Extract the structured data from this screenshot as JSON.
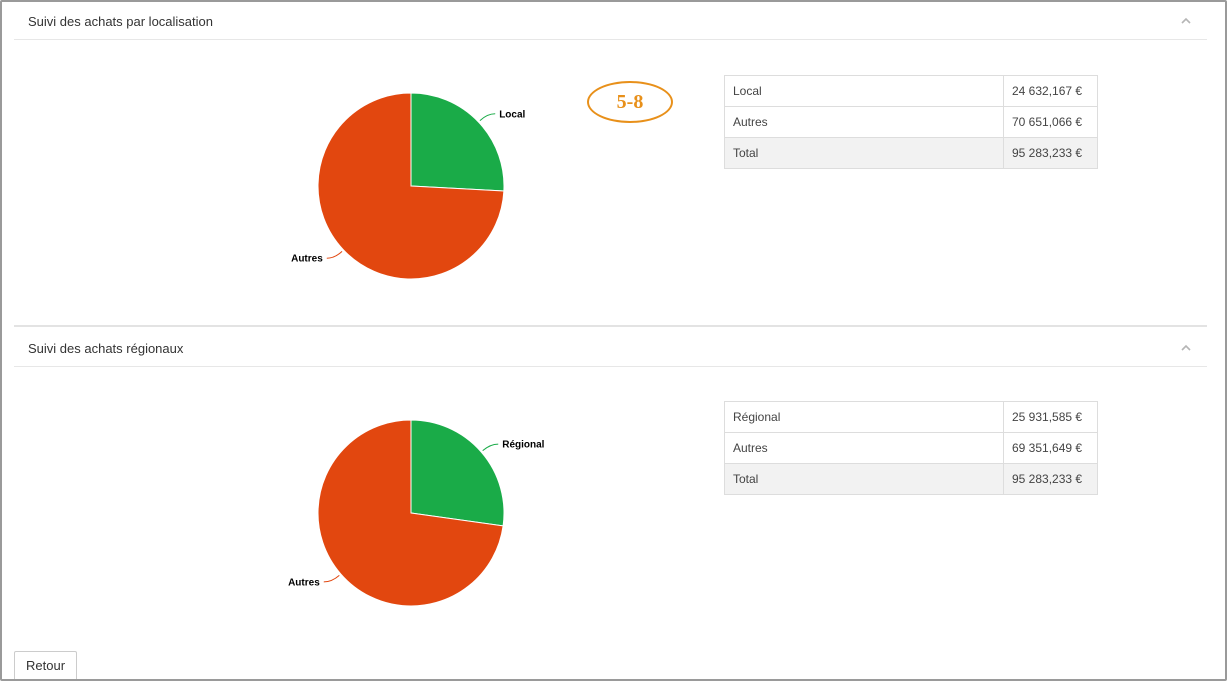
{
  "panels": [
    {
      "title": "Suivi des achats par localisation",
      "table": [
        {
          "label": "Local",
          "value": "24 632,167 €"
        },
        {
          "label": "Autres",
          "value": "70 651,066 €"
        },
        {
          "label": "Total",
          "value": "95 283,233 €"
        }
      ]
    },
    {
      "title": "Suivi des achats régionaux",
      "table": [
        {
          "label": "Régional",
          "value": "25 931,585 €"
        },
        {
          "label": "Autres",
          "value": "69 351,649 €"
        },
        {
          "label": "Total",
          "value": "95 283,233 €"
        }
      ]
    }
  ],
  "chart_data": [
    {
      "type": "pie",
      "labels": [
        "Local",
        "Autres"
      ],
      "values": [
        24632.167,
        70651.066
      ],
      "colors": [
        "#1aab48",
        "#e2470f"
      ]
    },
    {
      "type": "pie",
      "labels": [
        "Régional",
        "Autres"
      ],
      "values": [
        25931.585,
        69351.649
      ],
      "colors": [
        "#1aab48",
        "#e2470f"
      ]
    }
  ],
  "annotation_badge": "5-8",
  "icons": {
    "collapse": "chevron-up-icon"
  },
  "buttons": {
    "back_label": "Retour"
  }
}
